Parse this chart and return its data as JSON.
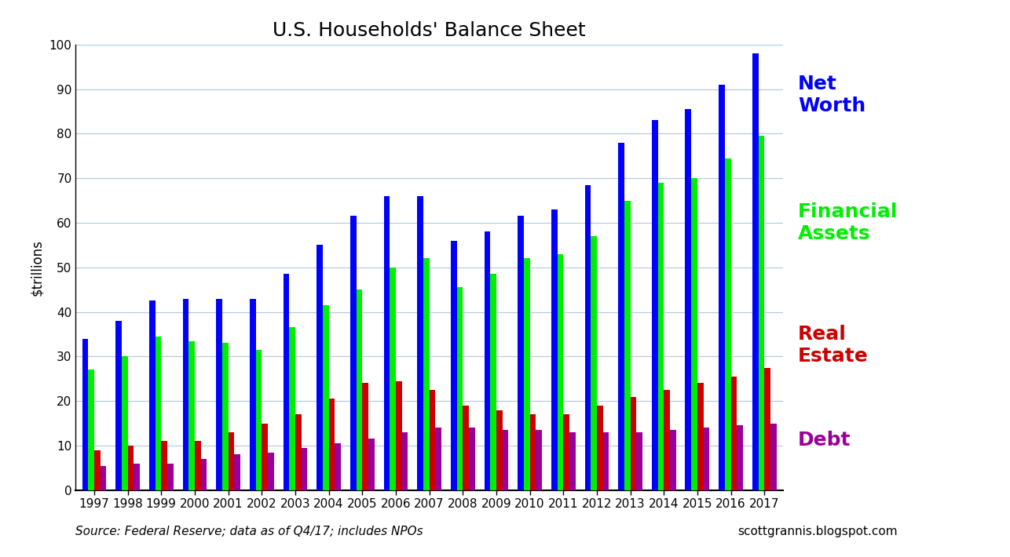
{
  "title": "U.S. Households' Balance Sheet",
  "ylabel": "$trillions",
  "source_text": "Source: Federal Reserve; data as of Q4/17; includes NPOs",
  "credit_text": "scottgrannis.blogspot.com",
  "years": [
    1997,
    1998,
    1999,
    2000,
    2001,
    2002,
    2003,
    2004,
    2005,
    2006,
    2007,
    2008,
    2009,
    2010,
    2011,
    2012,
    2013,
    2014,
    2015,
    2016,
    2017
  ],
  "net_worth": [
    34.0,
    38.0,
    42.5,
    43.0,
    43.0,
    43.0,
    48.5,
    55.0,
    61.5,
    66.0,
    66.0,
    56.0,
    58.0,
    61.5,
    63.0,
    68.5,
    78.0,
    83.0,
    85.5,
    91.0,
    98.0
  ],
  "financial_assets": [
    27.0,
    30.0,
    34.5,
    33.5,
    33.0,
    31.5,
    36.5,
    41.5,
    45.0,
    50.0,
    52.0,
    45.5,
    48.5,
    52.0,
    53.0,
    57.0,
    65.0,
    69.0,
    70.0,
    74.5,
    79.5
  ],
  "real_estate": [
    9.0,
    10.0,
    11.0,
    11.0,
    13.0,
    15.0,
    17.0,
    20.5,
    24.0,
    24.5,
    22.5,
    19.0,
    18.0,
    17.0,
    17.0,
    19.0,
    21.0,
    22.5,
    24.0,
    25.5,
    27.5
  ],
  "debt": [
    5.5,
    6.0,
    6.0,
    7.0,
    8.0,
    8.5,
    9.5,
    10.5,
    11.5,
    13.0,
    14.0,
    14.0,
    13.5,
    13.5,
    13.0,
    13.0,
    13.0,
    13.5,
    14.0,
    14.5,
    15.0
  ],
  "color_net_worth": "#0000ff",
  "color_financial_assets": "#00ee00",
  "color_real_estate": "#cc0000",
  "color_debt": "#990099",
  "background_color": "#ffffff",
  "grid_color": "#b0c8e0",
  "ylim": [
    0,
    100
  ],
  "yticks": [
    0,
    10,
    20,
    30,
    40,
    50,
    60,
    70,
    80,
    90,
    100
  ],
  "bar_width": 0.18,
  "label_net_worth": "Net\nWorth",
  "label_financial_assets": "Financial\nAssets",
  "label_real_estate": "Real\nEstate",
  "label_debt": "Debt",
  "title_fontsize": 18,
  "label_fontsize": 18,
  "tick_fontsize": 11,
  "ylabel_fontsize": 12
}
